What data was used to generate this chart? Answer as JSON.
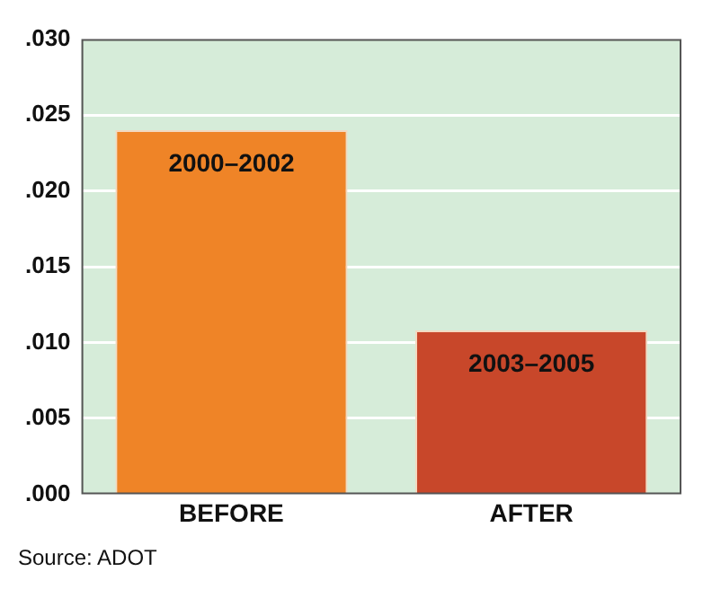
{
  "chart_data": {
    "type": "bar",
    "categories": [
      "BEFORE",
      "AFTER"
    ],
    "values": [
      0.024,
      0.0108
    ],
    "colors": [
      "#ef8427",
      "#c8472a"
    ],
    "ylim": [
      0,
      0.03
    ],
    "yticks": [
      {
        "value": 0,
        "label": ".000"
      },
      {
        "value": 0.005,
        "label": ".005"
      },
      {
        "value": 0.01,
        "label": ".010"
      },
      {
        "value": 0.015,
        "label": ".015"
      },
      {
        "value": 0.02,
        "label": ".020"
      },
      {
        "value": 0.025,
        "label": ".025"
      },
      {
        "value": 0.03,
        "label": ".030"
      }
    ],
    "grid": "y",
    "annotations": [
      {
        "text": "2000–2002",
        "x": "BEFORE",
        "y": 0.024
      },
      {
        "text": "2003–2005",
        "x": "AFTER",
        "y": 0.0108
      },
      "Source: ADOT"
    ]
  }
}
